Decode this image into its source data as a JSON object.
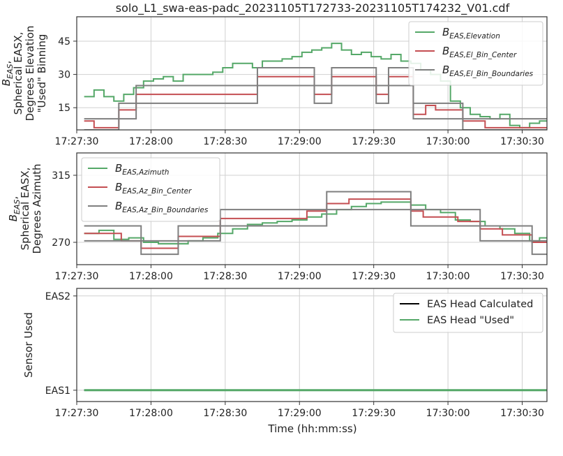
{
  "figure": {
    "title": "solo_L1_swa-eas-padc_20231105T172733-20231105T174232_V01.cdf",
    "xlabel": "Time (hh:mm:ss)"
  },
  "colors": {
    "green": "#55a868",
    "red": "#c44e52",
    "gray": "#7f7f7f",
    "black": "#000000",
    "grid": "#d0d0d0"
  },
  "chart_data": [
    {
      "type": "line",
      "ylabel_lines": [
        "B_EAS,",
        "Spherical EASX,",
        "Degrees Elevation",
        "\"Used\" Binning"
      ],
      "yticks": [
        15,
        30,
        45
      ],
      "ylim": [
        5,
        56
      ],
      "xlim": [
        "17:27:30",
        "17:30:40"
      ],
      "xticks": [
        "17:27:30",
        "17:28:00",
        "17:28:30",
        "17:29:00",
        "17:29:30",
        "17:30:00",
        "17:30:30"
      ],
      "grid": true,
      "legend_placement": "upper right",
      "series": [
        {
          "name": "B_EAS,Elevation",
          "legend_main": "B",
          "legend_sub": "EAS,Elevation",
          "color": "green",
          "style": "step",
          "x": [
            "17:27:33",
            "17:27:37",
            "17:27:41",
            "17:27:45",
            "17:27:49",
            "17:27:53",
            "17:27:57",
            "17:28:01",
            "17:28:05",
            "17:28:09",
            "17:28:13",
            "17:28:17",
            "17:28:21",
            "17:28:25",
            "17:28:29",
            "17:28:33",
            "17:28:37",
            "17:28:41",
            "17:28:45",
            "17:28:49",
            "17:28:53",
            "17:28:57",
            "17:29:01",
            "17:29:05",
            "17:29:09",
            "17:29:13",
            "17:29:17",
            "17:29:21",
            "17:29:25",
            "17:29:29",
            "17:29:33",
            "17:29:37",
            "17:29:41",
            "17:29:45",
            "17:29:49",
            "17:29:53",
            "17:29:57",
            "17:30:01",
            "17:30:05",
            "17:30:09",
            "17:30:13",
            "17:30:17",
            "17:30:21",
            "17:30:25",
            "17:30:29",
            "17:30:33",
            "17:30:37"
          ],
          "y": [
            20,
            23,
            20,
            18,
            21,
            24,
            27,
            28,
            29,
            27,
            30,
            30,
            30,
            31,
            33,
            35,
            35,
            33,
            36,
            36,
            37,
            38,
            40,
            41,
            42,
            44,
            41,
            39,
            40,
            38,
            37,
            39,
            36,
            35,
            32,
            30,
            27,
            18,
            15,
            12,
            11,
            10,
            12,
            7,
            6,
            8,
            9
          ]
        },
        {
          "name": "B_EAS,El_Bin_Center",
          "legend_main": "B",
          "legend_sub": "EAS,El_Bin_Center",
          "color": "red",
          "style": "step",
          "x": [
            "17:27:33",
            "17:27:37",
            "17:27:47",
            "17:27:54",
            "17:28:10",
            "17:28:33",
            "17:28:43",
            "17:29:06",
            "17:29:13",
            "17:29:31",
            "17:29:36",
            "17:29:46",
            "17:29:51",
            "17:29:55",
            "17:30:06",
            "17:30:15"
          ],
          "y": [
            9,
            6,
            14,
            21,
            21,
            21,
            29,
            21,
            29,
            21,
            29,
            12,
            16,
            14,
            9,
            6
          ]
        },
        {
          "name": "B_EAS,El_Bin_Boundaries",
          "legend_main": "B",
          "legend_sub": "EAS,El_Bin_Boundaries",
          "color": "gray",
          "style": "step-pair",
          "pairs": [
            [
              5,
              10
            ],
            [
              10,
              17
            ],
            [
              17,
              25
            ],
            [
              25,
              33
            ],
            [
              33,
              45
            ]
          ]
        }
      ]
    },
    {
      "type": "line",
      "ylabel_lines": [
        "B_EAS,",
        "Spherical EASX,",
        "Degrees Azimuth"
      ],
      "yticks": [
        270,
        315
      ],
      "ylim": [
        255,
        330
      ],
      "xlim": [
        "17:27:30",
        "17:30:40"
      ],
      "xticks": [
        "17:27:30",
        "17:28:00",
        "17:28:30",
        "17:29:00",
        "17:29:30",
        "17:30:00",
        "17:30:30"
      ],
      "grid": true,
      "legend_placement": "upper left",
      "series": [
        {
          "name": "B_EAS,Azimuth",
          "legend_main": "B",
          "legend_sub": "EAS,Azimuth",
          "color": "green",
          "style": "step",
          "x": [
            "17:27:33",
            "17:27:39",
            "17:27:45",
            "17:27:51",
            "17:27:57",
            "17:28:03",
            "17:28:09",
            "17:28:15",
            "17:28:21",
            "17:28:27",
            "17:28:33",
            "17:28:39",
            "17:28:45",
            "17:28:51",
            "17:28:57",
            "17:29:03",
            "17:29:09",
            "17:29:15",
            "17:29:21",
            "17:29:27",
            "17:29:33",
            "17:29:39",
            "17:29:45",
            "17:29:51",
            "17:29:57",
            "17:30:03",
            "17:30:09",
            "17:30:15",
            "17:30:21",
            "17:30:27",
            "17:30:33",
            "17:30:37"
          ],
          "y": [
            276,
            278,
            272,
            273,
            270,
            269,
            269,
            271,
            273,
            276,
            279,
            282,
            283,
            284,
            285,
            287,
            289,
            292,
            294,
            296,
            297,
            297,
            295,
            292,
            290,
            285,
            284,
            281,
            279,
            276,
            271,
            273
          ]
        },
        {
          "name": "B_EAS,Az_Bin_Center",
          "legend_main": "B",
          "legend_sub": "EAS,Az_Bin_Center",
          "color": "red",
          "style": "step",
          "x": [
            "17:27:33",
            "17:27:48",
            "17:27:56",
            "17:28:11",
            "17:28:28",
            "17:29:03",
            "17:29:11",
            "17:29:20",
            "17:29:45",
            "17:29:50",
            "17:30:04",
            "17:30:13",
            "17:30:22",
            "17:30:34"
          ],
          "y": [
            276,
            271,
            266,
            274,
            286,
            291,
            296,
            299,
            291,
            287,
            284,
            279,
            275,
            270
          ]
        },
        {
          "name": "B_EAS,Az_Bin_Boundaries",
          "legend_main": "B",
          "legend_sub": "EAS,Az_Bin_Boundaries",
          "color": "gray",
          "style": "step-pair",
          "pairs": [
            [
              262,
              271
            ],
            [
              271,
              281
            ],
            [
              281,
              292
            ],
            [
              292,
              304
            ]
          ]
        }
      ]
    },
    {
      "type": "line",
      "ylabel_lines": [
        "Sensor Used"
      ],
      "yticks": [
        "EAS1",
        "EAS2"
      ],
      "ylim": [
        0.88,
        2.08
      ],
      "xlim": [
        "17:27:30",
        "17:30:40"
      ],
      "xticks": [
        "17:27:30",
        "17:28:00",
        "17:28:30",
        "17:29:00",
        "17:29:30",
        "17:30:00",
        "17:30:30"
      ],
      "grid": true,
      "legend_placement": "upper right",
      "series": [
        {
          "name": "EAS Head Calculated",
          "color": "black",
          "x": [
            "17:27:33",
            "17:30:40"
          ],
          "y": [
            "EAS1",
            "EAS1"
          ]
        },
        {
          "name": "EAS Head \"Used\"",
          "color": "green",
          "x": [
            "17:27:33",
            "17:30:40"
          ],
          "y": [
            "EAS1",
            "EAS1"
          ]
        }
      ]
    }
  ]
}
